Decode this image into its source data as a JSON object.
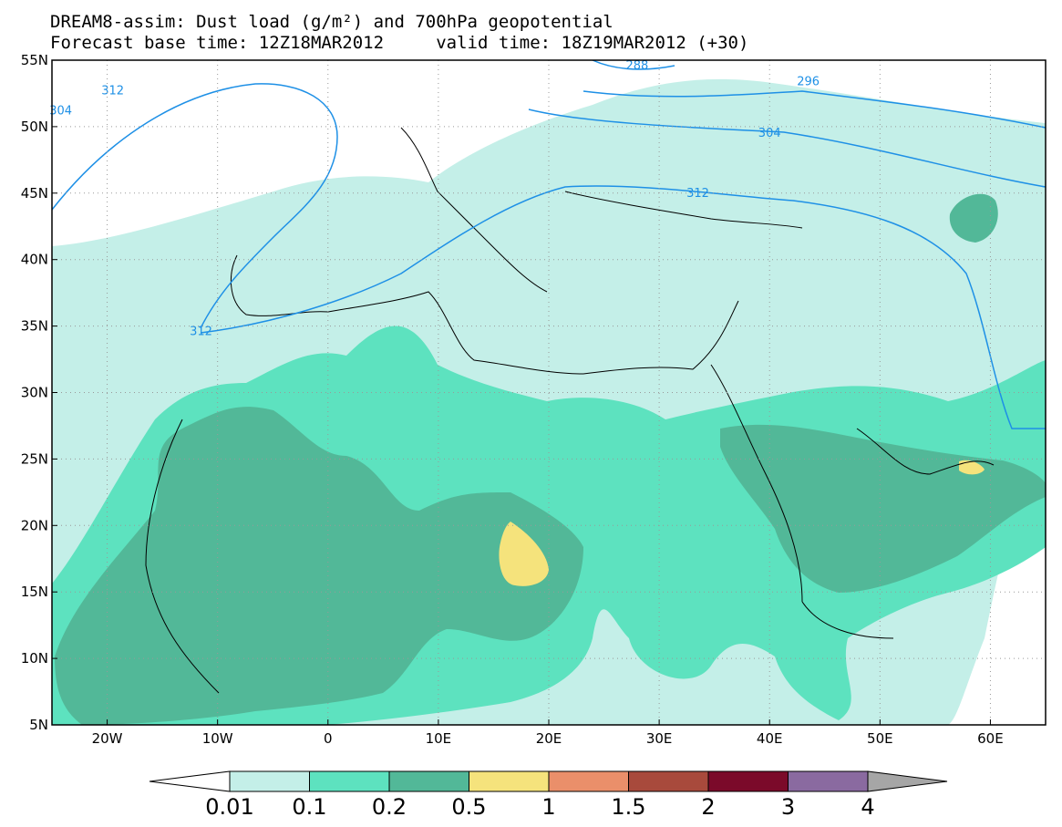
{
  "title": {
    "line1": "DREAM8-assim: Dust load (g/m²) and 700hPa geopotential",
    "line2": "Forecast base time: 12Z18MAR2012     valid time: 18Z19MAR2012 (+30)"
  },
  "map": {
    "lon_range": [
      -25,
      65
    ],
    "lat_range": [
      5,
      55
    ],
    "lon_ticks": [
      "20W",
      "10W",
      "0",
      "10E",
      "20E",
      "30E",
      "40E",
      "50E",
      "60E"
    ],
    "lat_ticks": [
      "55N",
      "50N",
      "45N",
      "40N",
      "35N",
      "30N",
      "25N",
      "20N",
      "15N",
      "10N",
      "5N"
    ],
    "grid": "dotted",
    "contour_color": "#1e90e6",
    "contour_labels": [
      {
        "text": "312",
        "lon": -19.5,
        "lat": 52.7
      },
      {
        "text": "304",
        "lon": -24.2,
        "lat": 51.2
      },
      {
        "text": "288",
        "lon": 28.0,
        "lat": 54.6
      },
      {
        "text": "296",
        "lon": 43.5,
        "lat": 53.4
      },
      {
        "text": "304",
        "lon": 40.0,
        "lat": 49.5
      },
      {
        "text": "312",
        "lon": 33.5,
        "lat": 45.0
      },
      {
        "text": "312",
        "lon": -11.5,
        "lat": 34.6
      }
    ]
  },
  "colorbar": {
    "labels": [
      "0.01",
      "0.1",
      "0.2",
      "0.5",
      "1",
      "1.5",
      "2",
      "3",
      "4"
    ],
    "colors": [
      "#c4efe8",
      "#5de2bf",
      "#52b898",
      "#f5e37c",
      "#ea8f6a",
      "#a84a3c",
      "#7b0a2a",
      "#8a6aa0",
      "#a6a6a6"
    ],
    "under_color": "#ffffff"
  }
}
